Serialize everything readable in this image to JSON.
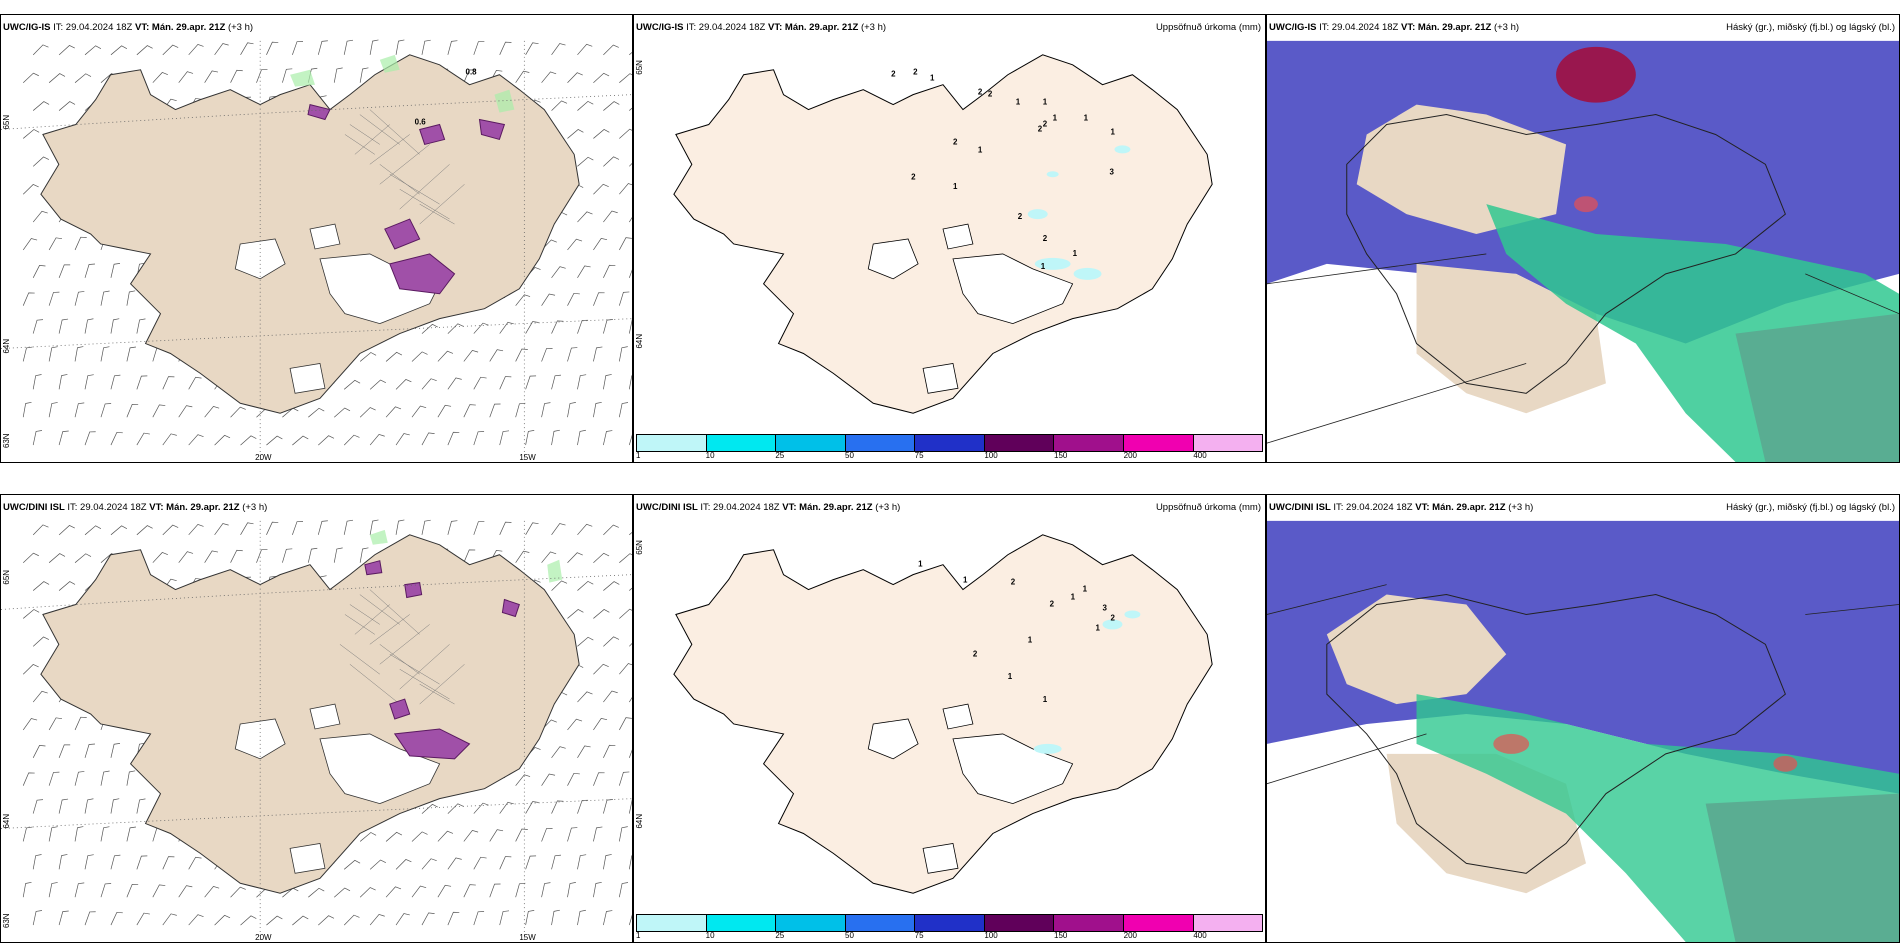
{
  "panels": [
    {
      "model": "UWC/IG-IS",
      "it": "IT: 29.04.2024 18Z",
      "vt": "VT: Mán. 29.apr. 21Z",
      "lead": "(+3 h)",
      "right": "",
      "lat_labels": [
        "65N",
        "64N",
        "63N"
      ],
      "lon_labels": [
        "20W",
        "15W"
      ]
    },
    {
      "model": "UWC/IG-IS",
      "it": "IT: 29.04.2024 18Z",
      "vt": "VT: Mán. 29.apr. 21Z",
      "lead": "(+3 h)",
      "right": "Uppsöfnuð úrkoma (mm)",
      "lat_labels": [
        "65N",
        "64N"
      ],
      "precip_labels": [
        "2",
        "2",
        "1",
        "2",
        "2",
        "1",
        "2",
        "1",
        "1",
        "2",
        "2",
        "1",
        "1",
        "1",
        "3",
        "2",
        "1",
        "2",
        "2",
        "1",
        "1"
      ]
    },
    {
      "model": "UWC/IG-IS",
      "it": "IT: 29.04.2024 18Z",
      "vt": "VT: Mán. 29.apr. 21Z",
      "lead": "(+3 h)",
      "right": "Háský (gr.), miðský (fj.bl.) og lágský (bl.)"
    },
    {
      "model": "UWC/DINI ISL",
      "it": "IT: 29.04.2024 18Z",
      "vt": "VT: Mán. 29.apr. 21Z",
      "lead": "(+3 h)",
      "right": "",
      "lat_labels": [
        "65N",
        "64N",
        "63N"
      ],
      "lon_labels": [
        "20W",
        "15W"
      ]
    },
    {
      "model": "UWC/DINI ISL",
      "it": "IT: 29.04.2024 18Z",
      "vt": "VT: Mán. 29.apr. 21Z",
      "lead": "(+3 h)",
      "right": "Uppsöfnuð úrkoma (mm)",
      "lat_labels": [
        "65N",
        "64N"
      ],
      "precip_labels": [
        "1",
        "1",
        "2",
        "1",
        "1",
        "2",
        "3",
        "2",
        "1",
        "1",
        "2",
        "1",
        "1"
      ]
    },
    {
      "model": "UWC/DINI ISL",
      "it": "IT: 29.04.2024 18Z",
      "vt": "VT: Mán. 29.apr. 21Z",
      "lead": "(+3 h)",
      "right": "Háský (gr.), miðský (fj.bl.) og lágský (bl.)"
    }
  ],
  "wind_labels": {
    "top": [
      "0.8",
      "0.6"
    ]
  },
  "colorbar": {
    "ticks": [
      "1",
      "10",
      "25",
      "50",
      "75",
      "100",
      "150",
      "200",
      "400"
    ],
    "colors": [
      "#bff6f8",
      "#00e8f0",
      "#00c0e8",
      "#2870f0",
      "#2030c8",
      "#60005a",
      "#a0108c",
      "#f000b0",
      "#f4b0f0"
    ]
  },
  "colors": {
    "land": "#e8d8c4",
    "land_light": "#fbeee2",
    "sea_high": "#5a5ac8",
    "green": "#30c890"
  }
}
